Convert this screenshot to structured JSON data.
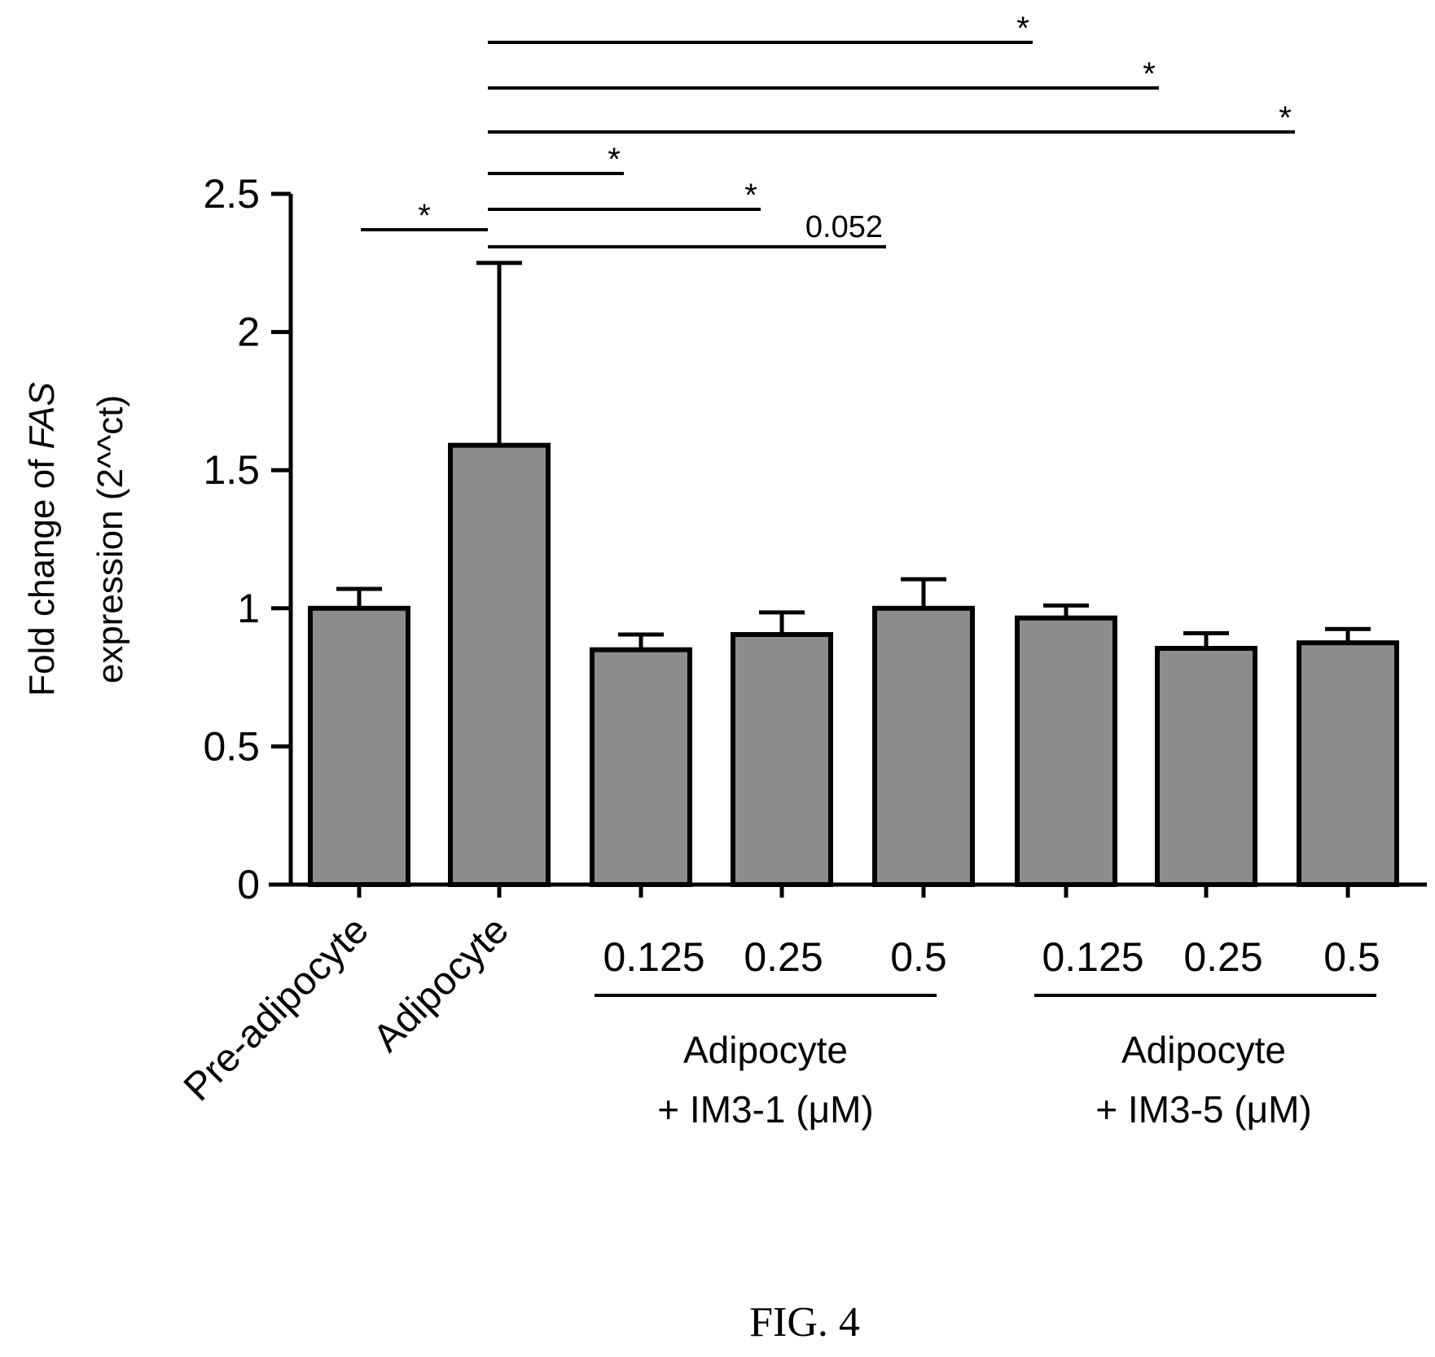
{
  "chart_data": {
    "type": "bar",
    "ylabel_line1_prefix": "Fold change of ",
    "ylabel_line1_gene": "FAS",
    "ylabel_line2": "expression (2^^ct)",
    "ylim": [
      0,
      2.5
    ],
    "yticks": [
      "0",
      "0.5",
      "1",
      "1.5",
      "2",
      "2.5"
    ],
    "grid": false,
    "categories": [
      "Pre-adipocyte",
      "Adipocyte",
      "0.125",
      "0.25",
      "0.5",
      "0.125",
      "0.25",
      "0.5"
    ],
    "values": [
      1.0,
      1.59,
      0.85,
      0.905,
      1.0,
      0.965,
      0.855,
      0.875
    ],
    "errors": [
      0.07,
      0.66,
      0.055,
      0.08,
      0.105,
      0.045,
      0.055,
      0.05
    ],
    "bar_color": "#8c8c8c",
    "groups": [
      {
        "label_line1": "Adipocyte",
        "label_line2": "+ IM3-1 (μM)"
      },
      {
        "label_line1": "Adipocyte",
        "label_line2": "+ IM3-5 (μM)"
      }
    ],
    "comparisons": [
      {
        "from": 0,
        "to": 1,
        "label": "*"
      },
      {
        "from": 1,
        "to": 2,
        "label": "*"
      },
      {
        "from": 1,
        "to": 3,
        "label": "*"
      },
      {
        "from": 1,
        "to": 4,
        "label": "0.052"
      },
      {
        "from": 1,
        "to": 5,
        "label": "*"
      },
      {
        "from": 1,
        "to": 6,
        "label": "*"
      },
      {
        "from": 1,
        "to": 7,
        "label": "*"
      }
    ]
  },
  "figure_caption": "FIG. 4"
}
